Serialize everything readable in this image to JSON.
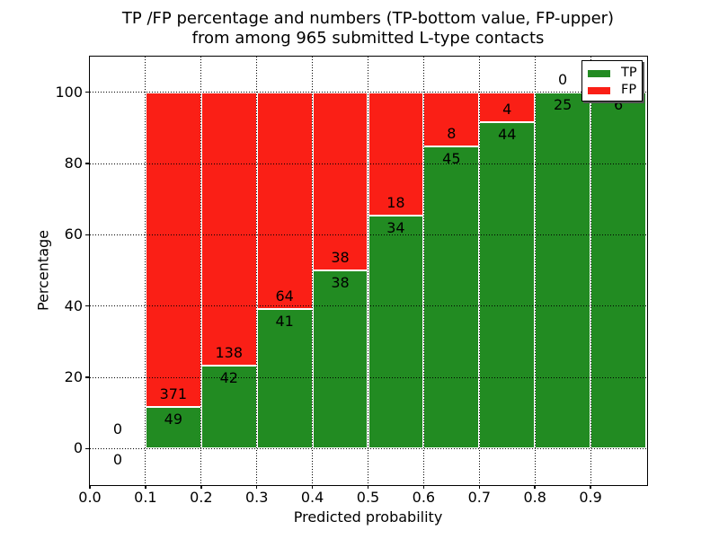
{
  "chart_data": {
    "type": "bar",
    "stacked": true,
    "title_line1": "TP /FP percentage and numbers (TP-bottom value, FP-upper)",
    "title_line2": "from among 965 submitted L-type contacts",
    "xlabel": "Predicted probability",
    "ylabel": "Percentage",
    "total_submitted": 965,
    "xlim": [
      0.0,
      1.0
    ],
    "ylim": [
      -10,
      110
    ],
    "xticks": [
      "0.0",
      "0.1",
      "0.2",
      "0.3",
      "0.4",
      "0.5",
      "0.6",
      "0.7",
      "0.8",
      "0.9"
    ],
    "ytick_values": [
      0,
      20,
      40,
      60,
      80,
      100
    ],
    "grid_style": "dotted",
    "bin_width": 0.1,
    "legend": {
      "position": "upper right",
      "entries": [
        {
          "label": "TP",
          "color": "#228b22"
        },
        {
          "label": "FP",
          "color": "#fa1f16"
        }
      ]
    },
    "bins": [
      {
        "x_start": 0.0,
        "tp_count": 0,
        "fp_count": 0,
        "tp_pct": 0.0
      },
      {
        "x_start": 0.1,
        "tp_count": 49,
        "fp_count": 371,
        "tp_pct": 11.67
      },
      {
        "x_start": 0.2,
        "tp_count": 42,
        "fp_count": 138,
        "tp_pct": 23.33
      },
      {
        "x_start": 0.3,
        "tp_count": 41,
        "fp_count": 64,
        "tp_pct": 39.05
      },
      {
        "x_start": 0.4,
        "tp_count": 38,
        "fp_count": 38,
        "tp_pct": 50.0
      },
      {
        "x_start": 0.5,
        "tp_count": 34,
        "fp_count": 18,
        "tp_pct": 65.38
      },
      {
        "x_start": 0.6,
        "tp_count": 45,
        "fp_count": 8,
        "tp_pct": 84.91
      },
      {
        "x_start": 0.7,
        "tp_count": 44,
        "fp_count": 4,
        "tp_pct": 91.67
      },
      {
        "x_start": 0.8,
        "tp_count": 25,
        "fp_count": 0,
        "tp_pct": 100.0
      },
      {
        "x_start": 0.9,
        "tp_count": 6,
        "fp_count": 0,
        "tp_pct": 100.0
      }
    ],
    "colors": {
      "tp": "#228b22",
      "fp": "#fa1f16",
      "grid": "#000000",
      "bar_edge": "#ffffff",
      "background": "#ffffff"
    }
  }
}
